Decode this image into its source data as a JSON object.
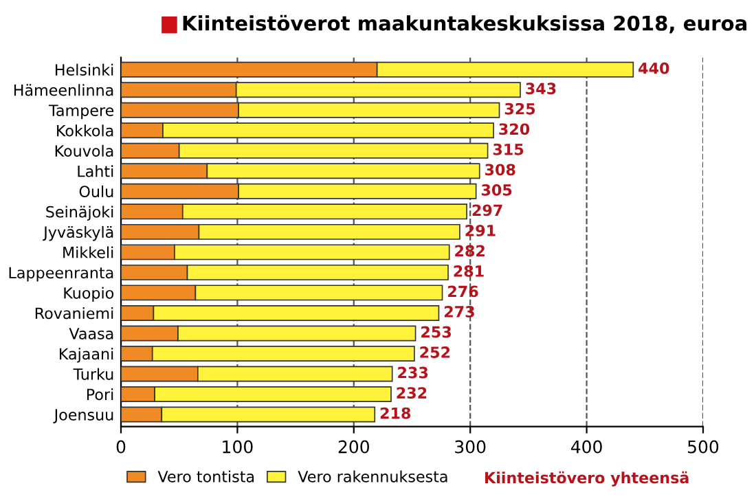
{
  "chart_data": {
    "type": "bar",
    "orientation": "horizontal",
    "stacked": true,
    "title": "Kiinteistöverot maakuntakeskuksissa 2018, euroa",
    "categories": [
      "Helsinki",
      "Hämeenlinna",
      "Tampere",
      "Kokkola",
      "Kouvola",
      "Lahti",
      "Oulu",
      "Seinäjoki",
      "Jyväskylä",
      "Mikkeli",
      "Lappeenranta",
      "Kuopio",
      "Rovaniemi",
      "Vaasa",
      "Kajaani",
      "Turku",
      "Pori",
      "Joensuu"
    ],
    "series": [
      {
        "name": "Vero tontista",
        "color": "#f08a24",
        "values": [
          220,
          99,
          101,
          36,
          50,
          74,
          101,
          53,
          67,
          46,
          57,
          64,
          28,
          49,
          27,
          66,
          29,
          35
        ]
      },
      {
        "name": "Vero rakennuksesta",
        "color": "#fff23a",
        "values": [
          220,
          244,
          224,
          284,
          265,
          234,
          204,
          244,
          224,
          236,
          224,
          212,
          245,
          204,
          225,
          167,
          203,
          183
        ]
      }
    ],
    "totals": [
      "440",
      "343",
      "325",
      "320",
      "315",
      "308",
      "305",
      "297",
      "291",
      "282",
      "281",
      "276",
      "273",
      "253",
      "252",
      "233",
      "232",
      "218"
    ],
    "annotations": [
      "Kiinteistövero yhteensä"
    ],
    "xlim": [
      0,
      500
    ],
    "xticks": [
      0,
      100,
      200,
      300,
      400,
      500
    ],
    "grid": "x",
    "legend": "bottom"
  }
}
